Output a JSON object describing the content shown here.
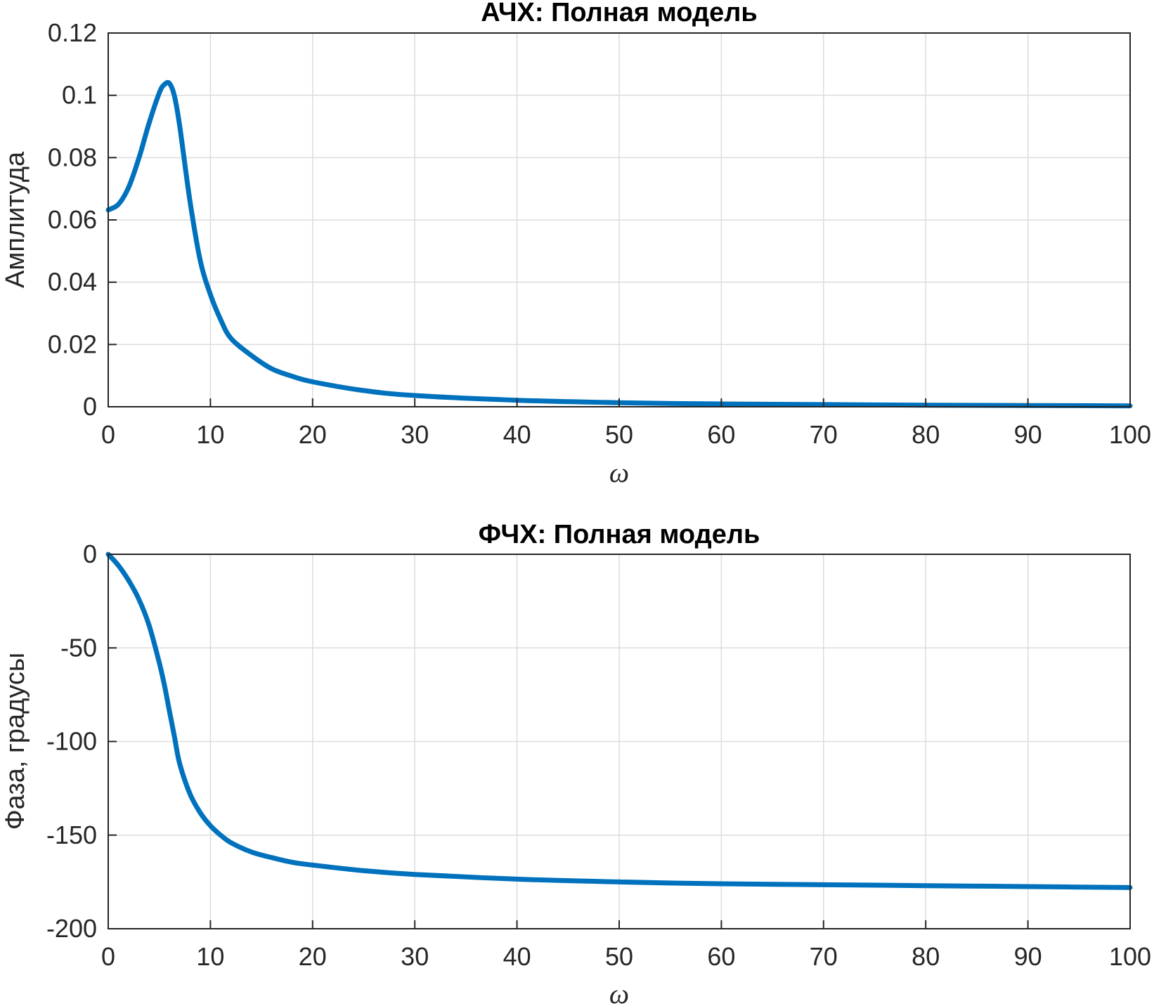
{
  "chart_data": [
    {
      "type": "line",
      "title": "АЧХ: Полная модель",
      "xlabel": "ω",
      "ylabel": "Амплитуда",
      "xlim": [
        0,
        100
      ],
      "ylim": [
        0,
        0.12
      ],
      "xticks": [
        "0",
        "10",
        "20",
        "30",
        "40",
        "50",
        "60",
        "70",
        "80",
        "90",
        "100"
      ],
      "yticks": [
        "0",
        "0.02",
        "0.04",
        "0.06",
        "0.08",
        "0.1",
        "0.12"
      ],
      "grid": true,
      "color": "#0072bd",
      "series": [
        {
          "x": [
            0,
            1,
            2,
            3,
            4,
            5,
            5.5,
            6,
            6.5,
            7,
            8,
            9,
            10,
            11,
            12,
            14,
            16,
            18,
            20,
            25,
            30,
            40,
            50,
            60,
            70,
            80,
            90,
            100
          ],
          "values": [
            0.0632,
            0.065,
            0.0705,
            0.0798,
            0.0911,
            0.1008,
            0.1035,
            0.1038,
            0.0995,
            0.09,
            0.066,
            0.047,
            0.036,
            0.028,
            0.022,
            0.0165,
            0.0122,
            0.0098,
            0.008,
            0.0052,
            0.0036,
            0.0021,
            0.0013,
            0.0009,
            0.0007,
            0.0005,
            0.0004,
            0.0003
          ]
        }
      ]
    },
    {
      "type": "line",
      "title": "ФЧХ: Полная модель",
      "xlabel": "ω",
      "ylabel": "Фаза, градусы",
      "xlim": [
        0,
        100
      ],
      "ylim": [
        -200,
        0
      ],
      "xticks": [
        "0",
        "10",
        "20",
        "30",
        "40",
        "50",
        "60",
        "70",
        "80",
        "90",
        "100"
      ],
      "yticks": [
        "0",
        "-50",
        "-100",
        "-150",
        "-200"
      ],
      "grid": true,
      "color": "#0072bd",
      "series": [
        {
          "x": [
            0,
            1,
            2,
            3,
            4,
            5,
            5.5,
            6,
            6.5,
            7,
            8,
            9,
            10,
            11,
            12,
            14,
            16,
            18,
            20,
            25,
            30,
            40,
            50,
            60,
            70,
            80,
            90,
            100
          ],
          "values": [
            0,
            -6,
            -14,
            -24,
            -38,
            -58,
            -70,
            -84,
            -98,
            -112,
            -128,
            -138,
            -145,
            -150,
            -154,
            -159,
            -162,
            -164.5,
            -166,
            -169,
            -171,
            -173.5,
            -175,
            -176,
            -176.5,
            -177,
            -177.5,
            -178
          ]
        }
      ]
    }
  ]
}
